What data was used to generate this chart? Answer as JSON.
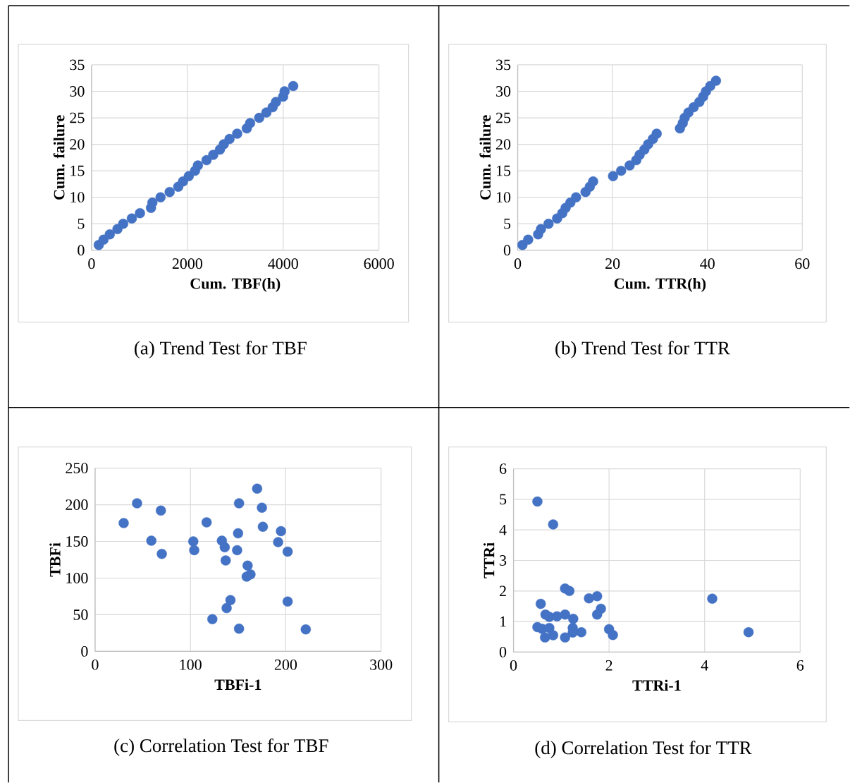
{
  "chart_data": [
    {
      "type": "scatter",
      "xlabel": "Cum. TBF(h)",
      "ylabel": "Cum. failure",
      "color": "#4472c4",
      "marker": "circle",
      "grid": true,
      "x": [
        150,
        250,
        380,
        540,
        660,
        840,
        1010,
        1240,
        1270,
        1440,
        1630,
        1810,
        1910,
        2030,
        2160,
        2220,
        2400,
        2540,
        2680,
        2760,
        2880,
        3040,
        3240,
        3310,
        3500,
        3650,
        3780,
        3850,
        4000,
        4030,
        4210
      ],
      "values": [
        1,
        2,
        3,
        4,
        5,
        6,
        7,
        8,
        9,
        10,
        11,
        12,
        13,
        14,
        15,
        16,
        17,
        18,
        19,
        20,
        21,
        22,
        23,
        24,
        25,
        26,
        27,
        28,
        29,
        30,
        31
      ],
      "xlim": [
        0,
        6000
      ],
      "ylim": [
        0,
        35
      ],
      "xticks": [
        0,
        2000,
        4000,
        6000
      ],
      "yticks": [
        0,
        5,
        10,
        15,
        20,
        25,
        30,
        35
      ],
      "annotations": [
        "(a) Trend Test for TBF"
      ]
    },
    {
      "type": "scatter",
      "xlabel": "Cum. TTR(h)",
      "ylabel": "Cum. failure",
      "color": "#4472c4",
      "marker": "circle",
      "grid": true,
      "x": [
        1.0,
        2.2,
        4.3,
        4.9,
        6.5,
        8.3,
        9.4,
        10.1,
        11.1,
        12.3,
        14.3,
        15.2,
        15.9,
        20.1,
        21.8,
        23.6,
        25.0,
        25.7,
        26.7,
        27.5,
        28.5,
        29.3,
        34.2,
        34.8,
        35.2,
        36.0,
        37.1,
        38.3,
        39.1,
        39.7,
        40.6,
        41.8
      ],
      "values": [
        1,
        2,
        3,
        4,
        5,
        6,
        7,
        8,
        9,
        10,
        11,
        12,
        13,
        14,
        15,
        16,
        17,
        18,
        19,
        20,
        21,
        22,
        23,
        24,
        25,
        26,
        27,
        28,
        29,
        30,
        31,
        32
      ],
      "xlim": [
        0,
        60
      ],
      "ylim": [
        0,
        35
      ],
      "xticks": [
        0,
        20,
        40,
        60
      ],
      "yticks": [
        0,
        5,
        10,
        15,
        20,
        25,
        30,
        35
      ],
      "annotations": [
        "(b) Trend Test for TTR"
      ]
    },
    {
      "type": "scatter",
      "xlabel": "TBFi-1",
      "ylabel": "TBFi",
      "color": "#4472c4",
      "marker": "circle",
      "grid": true,
      "x": [
        44,
        69,
        30,
        59,
        70,
        103,
        104,
        117,
        133,
        136,
        137,
        151,
        150,
        149,
        142,
        138,
        123,
        151,
        170,
        175,
        176,
        160,
        163,
        159,
        195,
        192,
        202,
        202,
        221
      ],
      "values": [
        202,
        192,
        175,
        151,
        133,
        150,
        138,
        176,
        151,
        142,
        124,
        202,
        161,
        138,
        70,
        59,
        44,
        31,
        222,
        196,
        170,
        117,
        105,
        102,
        164,
        149,
        136,
        68,
        30
      ],
      "xlim": [
        0,
        300
      ],
      "ylim": [
        0,
        250
      ],
      "xticks": [
        0,
        100,
        200,
        300
      ],
      "yticks": [
        0,
        50,
        100,
        150,
        200,
        250
      ],
      "annotations": [
        "(c)  Correlation Test for TBF"
      ]
    },
    {
      "type": "scatter",
      "xlabel": "TTRi-1",
      "ylabel": "TTRi",
      "color": "#4472c4",
      "marker": "circle",
      "grid": true,
      "x": [
        0.5,
        0.83,
        1.08,
        1.17,
        0.57,
        1.58,
        1.75,
        1.83,
        1.75,
        0.67,
        0.75,
        0.91,
        1.08,
        1.25,
        0.5,
        0.6,
        0.75,
        1.24,
        1.42,
        1.24,
        0.83,
        0.66,
        1.08,
        2.0,
        2.08,
        4.16,
        4.92
      ],
      "values": [
        4.93,
        4.18,
        2.08,
        2.0,
        1.58,
        1.76,
        1.83,
        1.42,
        1.23,
        1.23,
        1.15,
        1.17,
        1.23,
        1.09,
        0.82,
        0.76,
        0.79,
        0.79,
        0.65,
        0.64,
        0.55,
        0.48,
        0.48,
        0.75,
        0.56,
        1.75,
        0.65
      ],
      "xlim": [
        0,
        6
      ],
      "ylim": [
        0,
        6
      ],
      "xticks": [
        0,
        2,
        4,
        6
      ],
      "yticks": [
        0,
        1,
        2,
        3,
        4,
        5,
        6
      ],
      "annotations": [
        "(d) Correlation Test for TTR"
      ]
    }
  ]
}
